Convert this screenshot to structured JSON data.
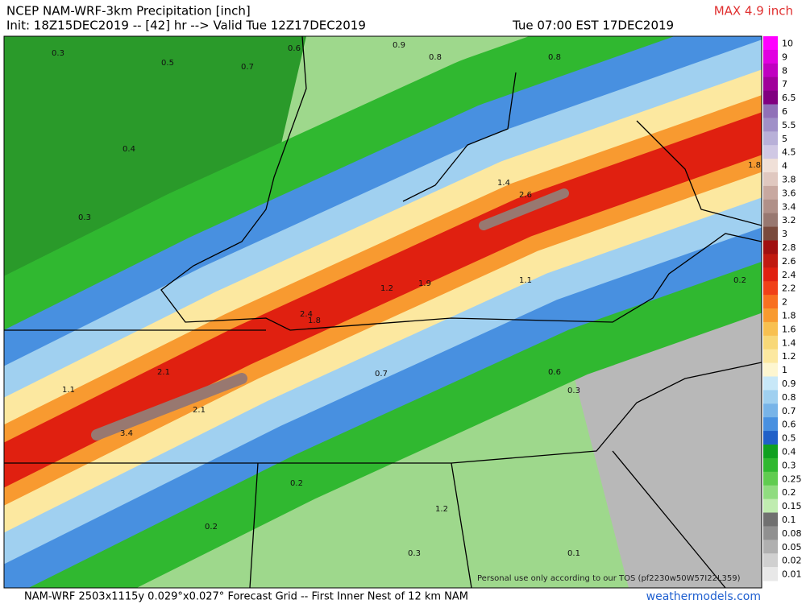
{
  "header": {
    "title": "NCEP NAM-WRF-3km Precipitation [inch]",
    "init": "Init: 18Z15DEC2019 -- [42] hr --> Valid Tue 12Z17DEC2019",
    "valid_local": "Tue 07:00 EST 17DEC2019",
    "max": "MAX 4.9 inch"
  },
  "legend": [
    {
      "label": "10",
      "color": "#ff00ff"
    },
    {
      "label": "9",
      "color": "#e000e0"
    },
    {
      "label": "8",
      "color": "#c000c0"
    },
    {
      "label": "7",
      "color": "#a0009a"
    },
    {
      "label": "6.5",
      "color": "#800080"
    },
    {
      "label": "6",
      "color": "#9070b8"
    },
    {
      "label": "5.5",
      "color": "#a090c8"
    },
    {
      "label": "5",
      "color": "#b8b0d8"
    },
    {
      "label": "4.5",
      "color": "#d0c8e4"
    },
    {
      "label": "4",
      "color": "#f0e0d8"
    },
    {
      "label": "3.8",
      "color": "#e0c8c0"
    },
    {
      "label": "3.6",
      "color": "#c8a8a0"
    },
    {
      "label": "3.4",
      "color": "#b09088"
    },
    {
      "label": "3.2",
      "color": "#987870"
    },
    {
      "label": "3",
      "color": "#7a4a3c"
    },
    {
      "label": "2.8",
      "color": "#a01010"
    },
    {
      "label": "2.6",
      "color": "#c01a10"
    },
    {
      "label": "2.4",
      "color": "#e02010"
    },
    {
      "label": "2.2",
      "color": "#f04018"
    },
    {
      "label": "2",
      "color": "#f87020"
    },
    {
      "label": "1.8",
      "color": "#f89a30"
    },
    {
      "label": "1.6",
      "color": "#f8c050"
    },
    {
      "label": "1.4",
      "color": "#f8d878"
    },
    {
      "label": "1.2",
      "color": "#fce8a0"
    },
    {
      "label": "1",
      "color": "#fdf6d0"
    },
    {
      "label": "0.9",
      "color": "#c8e8f8"
    },
    {
      "label": "0.8",
      "color": "#a0d0f0"
    },
    {
      "label": "0.7",
      "color": "#78b4e8"
    },
    {
      "label": "0.6",
      "color": "#4890e0"
    },
    {
      "label": "0.5",
      "color": "#2060c8"
    },
    {
      "label": "0.4",
      "color": "#10a020"
    },
    {
      "label": "0.3",
      "color": "#30b830"
    },
    {
      "label": "0.25",
      "color": "#60cc50"
    },
    {
      "label": "0.2",
      "color": "#90dc80"
    },
    {
      "label": "0.15",
      "color": "#c0ecb0"
    },
    {
      "label": "0.1",
      "color": "#707070"
    },
    {
      "label": "0.08",
      "color": "#909090"
    },
    {
      "label": "0.05",
      "color": "#b0b0b0"
    },
    {
      "label": "0.02",
      "color": "#d0d0d0"
    },
    {
      "label": "0.01",
      "color": "#e8e8e8"
    }
  ],
  "map_labels": [
    "0.3",
    "0.5",
    "0.6",
    "0.7",
    "0.9",
    "0.8",
    "0.8",
    "0.4",
    "0.3",
    "1.4",
    "2.6",
    "1.8",
    "1.2",
    "1.9",
    "1.1",
    "2.4",
    "1.8",
    "2.1",
    "3.4",
    "2.1",
    "1.1",
    "0.7",
    "0.6",
    "0.3",
    "0.2",
    "1.2",
    "0.2",
    "0.3",
    "0.1",
    "0.2"
  ],
  "tos": "Personal use only according to our TOS (pf2230w50W57I22L359)",
  "footer": {
    "grid": "NAM-WRF 2503x1115y 0.029°x0.027° Forecast Grid -- First Inner Nest of 12 km NAM",
    "site": "weathermodels.com"
  }
}
